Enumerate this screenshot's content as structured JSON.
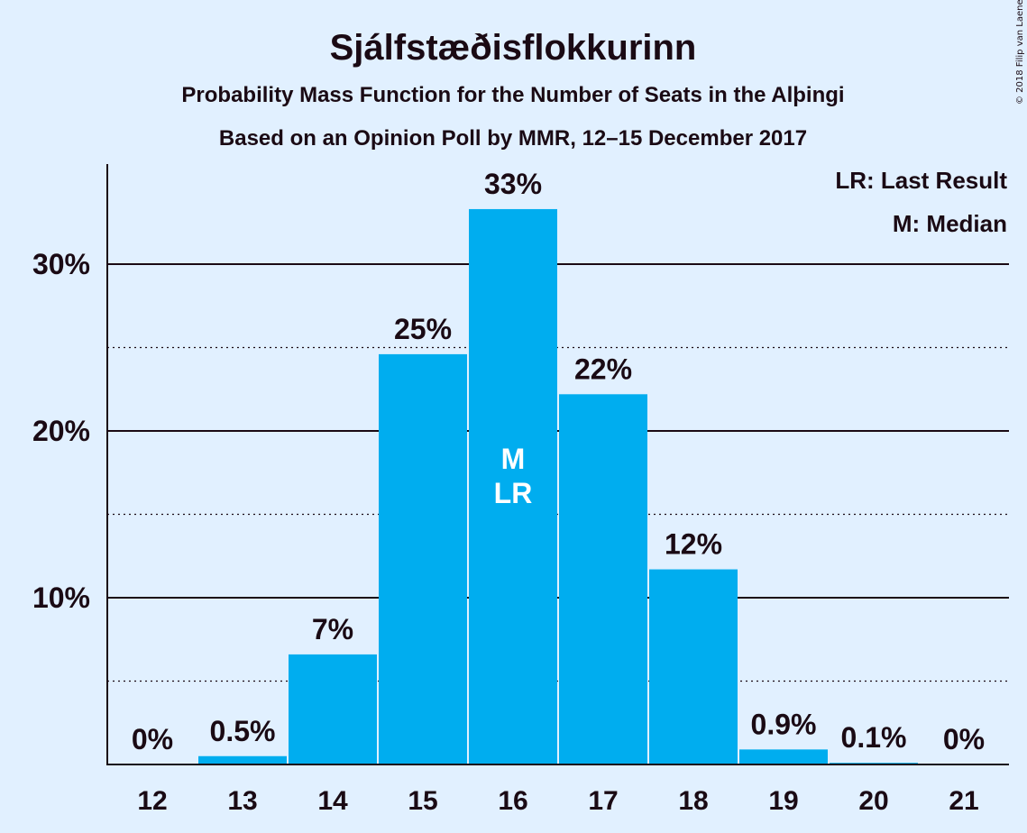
{
  "header": {
    "title": "Sjálfstæðisflokkurinn",
    "subtitle1": "Probability Mass Function for the Number of Seats in the Alþingi",
    "subtitle2": "Based on an Opinion Poll by MMR, 12–15 December 2017",
    "copyright": "© 2018 Filip van Laenen"
  },
  "legend": {
    "last_result": "LR: Last Result",
    "median": "M: Median"
  },
  "colors": {
    "bar": "#00adef",
    "background": "#e1f0ff",
    "text": "#1a0a14"
  },
  "chart_data": {
    "type": "bar",
    "categories": [
      "12",
      "13",
      "14",
      "15",
      "16",
      "17",
      "18",
      "19",
      "20",
      "21"
    ],
    "values": [
      0,
      0.5,
      6.6,
      24.6,
      33.3,
      22.2,
      11.7,
      0.9,
      0.1,
      0
    ],
    "labels": [
      "0%",
      "0.5%",
      "7%",
      "25%",
      "33%",
      "22%",
      "12%",
      "0.9%",
      "0.1%",
      "0%"
    ],
    "title": "Sjálfstæðisflokkurinn",
    "xlabel": "",
    "ylabel": "",
    "ylim": [
      0,
      36
    ],
    "yticks": [
      10,
      20,
      30
    ],
    "ytick_labels": [
      "10%",
      "20%",
      "30%"
    ],
    "minor_gridlines": [
      5,
      15,
      25
    ],
    "grid": true,
    "legend_position": "top-right",
    "markers": [
      {
        "category": "16",
        "labels": [
          "M",
          "LR"
        ]
      }
    ]
  }
}
